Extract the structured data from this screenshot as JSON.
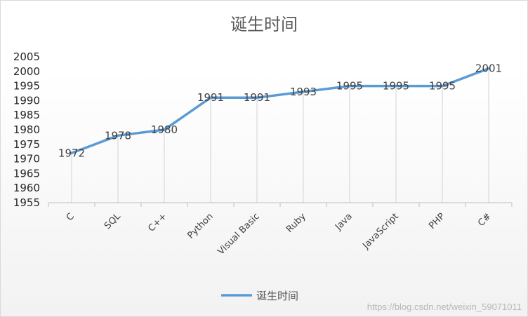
{
  "chart_data": {
    "type": "line",
    "title": "诞生时间",
    "categories": [
      "C",
      "SQL",
      "C++",
      "Python",
      "Visual Basic",
      "Ruby",
      "Java",
      "JavaScript",
      "PHP",
      "C#"
    ],
    "series": [
      {
        "name": "诞生时间",
        "values": [
          1972,
          1978,
          1980,
          1991,
          1991,
          1993,
          1995,
          1995,
          1995,
          2001
        ],
        "color": "#5b9bd5"
      }
    ],
    "ylim": [
      1955,
      2005
    ],
    "yticks": [
      1955,
      1960,
      1965,
      1970,
      1975,
      1980,
      1985,
      1990,
      1995,
      2000,
      2005
    ],
    "xlabel": "",
    "ylabel": "",
    "drop_lines": true,
    "data_labels": true,
    "grid": false,
    "legend_position": "bottom"
  },
  "watermark": "https://blog.csdn.net/weixin_59071011"
}
